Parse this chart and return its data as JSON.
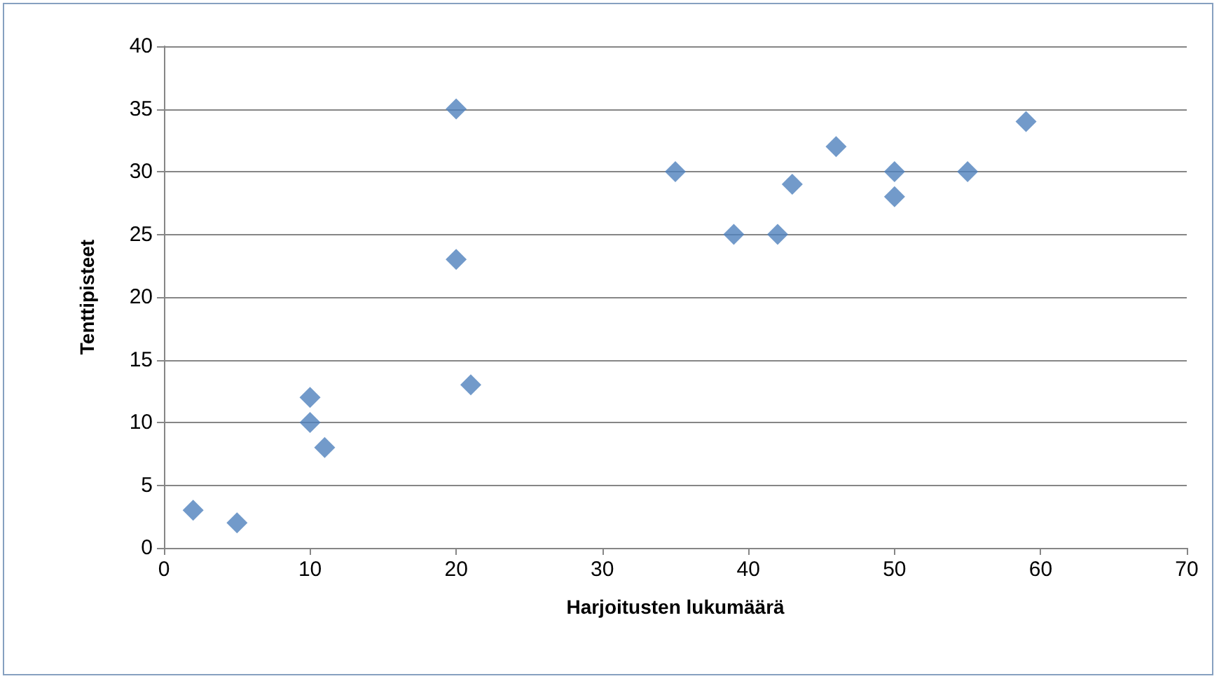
{
  "chart_data": {
    "type": "scatter",
    "xlabel": "Harjoitusten lukumäärä",
    "ylabel": "Tenttipisteet",
    "x": [
      2,
      5,
      10,
      10,
      11,
      20,
      20,
      21,
      35,
      39,
      42,
      43,
      46,
      50,
      50,
      55,
      59
    ],
    "series": [
      {
        "color": "#4f81bd",
        "values": [
          3,
          2,
          12,
          10,
          8,
          35,
          23,
          13,
          30,
          25,
          25,
          29,
          32,
          30,
          28,
          30,
          34
        ]
      }
    ],
    "xlim": [
      0,
      70
    ],
    "xticks": [
      0,
      10,
      20,
      30,
      40,
      50,
      60,
      70
    ],
    "ylim": [
      0,
      40
    ],
    "yticks": [
      0,
      5,
      10,
      15,
      20,
      25,
      30,
      35,
      40
    ],
    "grid": "y",
    "marker": "diamond"
  }
}
